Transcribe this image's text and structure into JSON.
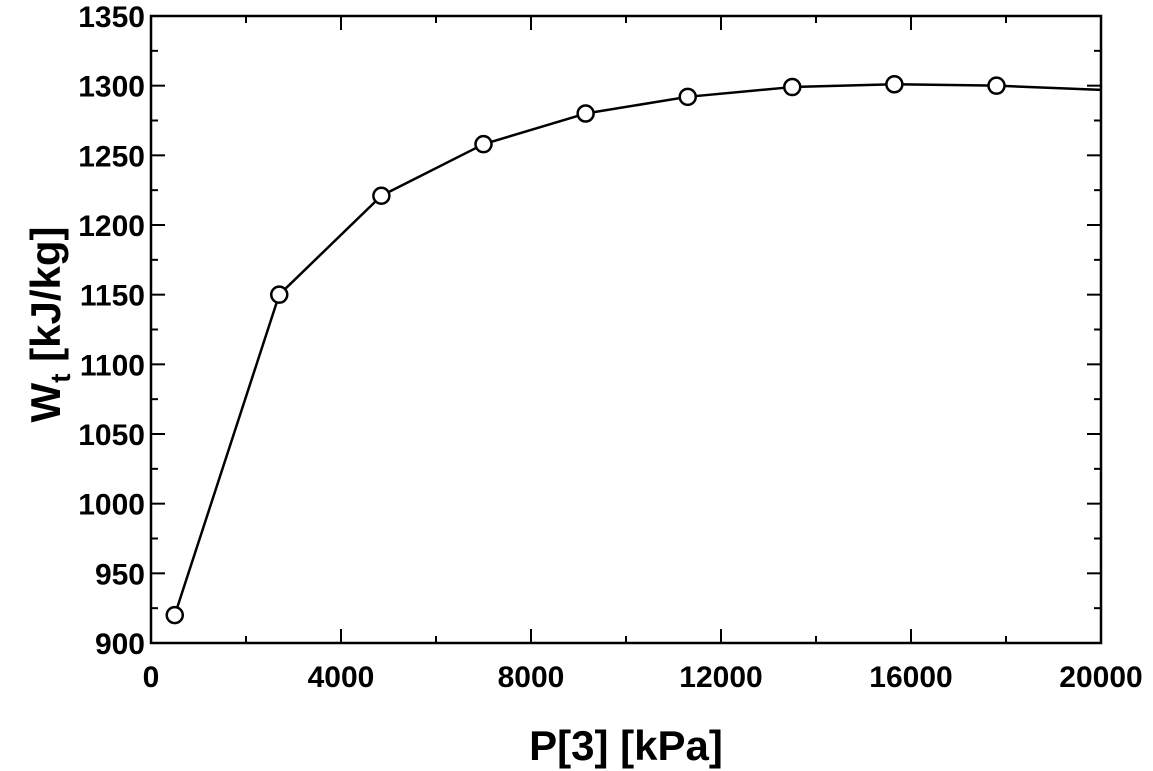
{
  "chart_data": {
    "type": "line",
    "xlabel": "P[3]  [kPa]",
    "ylabel_main": "W",
    "ylabel_sub": "t",
    "ylabel_unit": "  [kJ/kg]",
    "xlim": [
      0,
      20000
    ],
    "ylim": [
      900,
      1350
    ],
    "x_ticks": [
      0,
      4000,
      8000,
      12000,
      16000,
      20000
    ],
    "x_tick_labels": [
      "0",
      "4000",
      "8000",
      "12000",
      "16000",
      "20000"
    ],
    "y_ticks": [
      900,
      950,
      1000,
      1050,
      1100,
      1150,
      1200,
      1250,
      1300,
      1350
    ],
    "y_tick_labels": [
      "900",
      "950",
      "1000",
      "1050",
      "1100",
      "1150",
      "1200",
      "1250",
      "1300",
      "1350"
    ],
    "x_minor_step": 2000,
    "y_minor_step": 25,
    "grid": false,
    "series": [
      {
        "name": "W_t",
        "marker": "circle-open",
        "x": [
          500,
          2700,
          4850,
          7000,
          9150,
          11300,
          13500,
          15650,
          17800
        ],
        "y": [
          920,
          1150,
          1221,
          1258,
          1280,
          1292,
          1299,
          1301,
          1300
        ]
      }
    ],
    "curve": {
      "x": [
        500,
        2700,
        4850,
        7000,
        9150,
        11300,
        13500,
        15650,
        17800,
        20000
      ],
      "y": [
        920,
        1150,
        1221,
        1258,
        1280,
        1292,
        1299,
        1301,
        1300,
        1297
      ]
    }
  }
}
